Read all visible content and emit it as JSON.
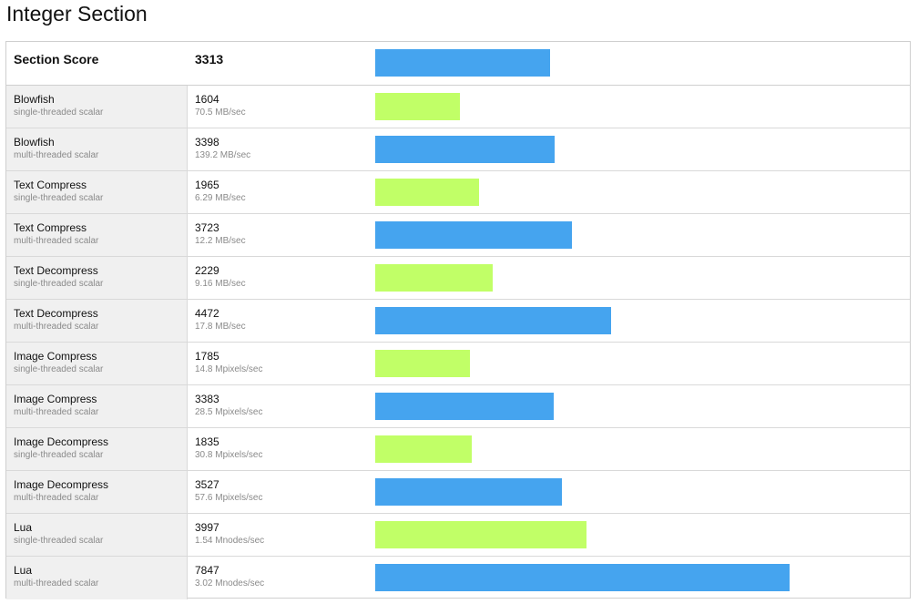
{
  "page": {
    "title": "Integer Section"
  },
  "chart_data": {
    "type": "bar",
    "orientation": "horizontal",
    "max_score_scale": 10000,
    "colors": {
      "single_threaded": "#c1ff67",
      "multi_threaded": "#45a4ef",
      "section_score": "#45a4ef"
    },
    "section": {
      "label": "Section Score",
      "score": "3313",
      "value": 3313
    },
    "rows": [
      {
        "name": "Blowfish",
        "mode": "single-threaded scalar",
        "score": "1604",
        "value": 1604,
        "rate": "70.5 MB/sec",
        "kind": "single"
      },
      {
        "name": "Blowfish",
        "mode": "multi-threaded scalar",
        "score": "3398",
        "value": 3398,
        "rate": "139.2 MB/sec",
        "kind": "multi"
      },
      {
        "name": "Text Compress",
        "mode": "single-threaded scalar",
        "score": "1965",
        "value": 1965,
        "rate": "6.29 MB/sec",
        "kind": "single"
      },
      {
        "name": "Text Compress",
        "mode": "multi-threaded scalar",
        "score": "3723",
        "value": 3723,
        "rate": "12.2 MB/sec",
        "kind": "multi"
      },
      {
        "name": "Text Decompress",
        "mode": "single-threaded scalar",
        "score": "2229",
        "value": 2229,
        "rate": "9.16 MB/sec",
        "kind": "single"
      },
      {
        "name": "Text Decompress",
        "mode": "multi-threaded scalar",
        "score": "4472",
        "value": 4472,
        "rate": "17.8 MB/sec",
        "kind": "multi"
      },
      {
        "name": "Image Compress",
        "mode": "single-threaded scalar",
        "score": "1785",
        "value": 1785,
        "rate": "14.8 Mpixels/sec",
        "kind": "single"
      },
      {
        "name": "Image Compress",
        "mode": "multi-threaded scalar",
        "score": "3383",
        "value": 3383,
        "rate": "28.5 Mpixels/sec",
        "kind": "multi"
      },
      {
        "name": "Image Decompress",
        "mode": "single-threaded scalar",
        "score": "1835",
        "value": 1835,
        "rate": "30.8 Mpixels/sec",
        "kind": "single"
      },
      {
        "name": "Image Decompress",
        "mode": "multi-threaded scalar",
        "score": "3527",
        "value": 3527,
        "rate": "57.6 Mpixels/sec",
        "kind": "multi"
      },
      {
        "name": "Lua",
        "mode": "single-threaded scalar",
        "score": "3997",
        "value": 3997,
        "rate": "1.54 Mnodes/sec",
        "kind": "single"
      },
      {
        "name": "Lua",
        "mode": "multi-threaded scalar",
        "score": "7847",
        "value": 7847,
        "rate": "3.02 Mnodes/sec",
        "kind": "multi"
      }
    ]
  }
}
